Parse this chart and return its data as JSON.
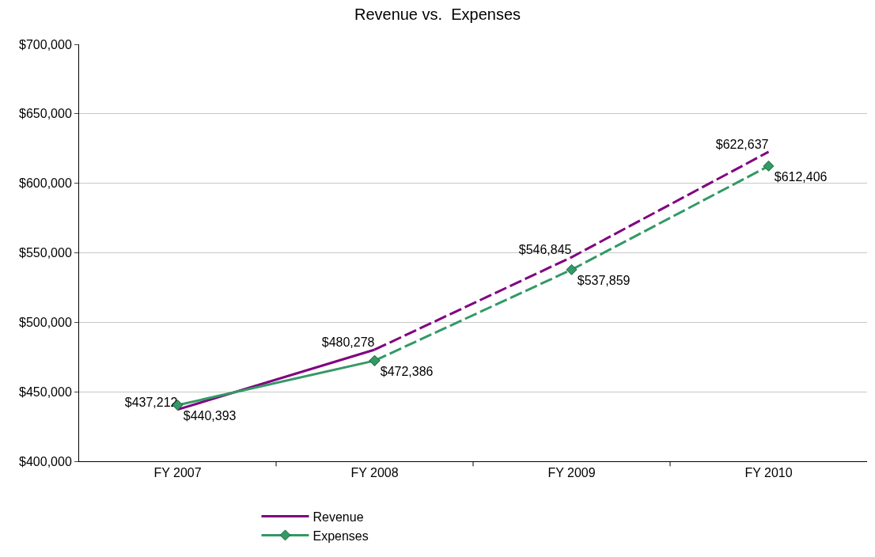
{
  "chart_data": {
    "type": "line",
    "title": "Revenue vs.  Expenses",
    "categories": [
      "FY 2007",
      "FY 2008",
      "FY 2009",
      "FY 2010"
    ],
    "series": [
      {
        "name": "Revenue",
        "color": "#800080",
        "values": [
          437212,
          480278,
          null,
          null
        ],
        "line_style": "solid",
        "marker": "none",
        "value_labels": [
          "$437,212",
          "$480,278",
          null,
          null
        ]
      },
      {
        "name": "Expenses",
        "color": "#339966",
        "values": [
          440393,
          472386,
          null,
          null
        ],
        "line_style": "solid",
        "marker": "diamond",
        "value_labels": [
          "$440,393",
          "$472,386",
          null,
          null
        ]
      },
      {
        "color": "#800080",
        "values": [
          null,
          480278,
          546845,
          622637
        ],
        "line_style": "dashed",
        "marker": "none",
        "value_labels": [
          null,
          null,
          "$546,845",
          "$622,637"
        ]
      },
      {
        "color": "#339966",
        "values": [
          null,
          472386,
          537859,
          612406
        ],
        "line_style": "dashed",
        "marker": "diamond",
        "value_labels": [
          null,
          null,
          "$537,859",
          "$612,406"
        ]
      }
    ],
    "ylim": [
      400000,
      700000
    ],
    "yticks": [
      {
        "value": 400000,
        "label": "$400,000"
      },
      {
        "value": 450000,
        "label": "$450,000"
      },
      {
        "value": 500000,
        "label": "$500,000"
      },
      {
        "value": 550000,
        "label": "$550,000"
      },
      {
        "value": 600000,
        "label": "$600,000"
      },
      {
        "value": 650000,
        "label": "$650,000"
      },
      {
        "value": 700000,
        "label": "$700,000"
      }
    ],
    "grid": "y",
    "legend": "bottom"
  }
}
